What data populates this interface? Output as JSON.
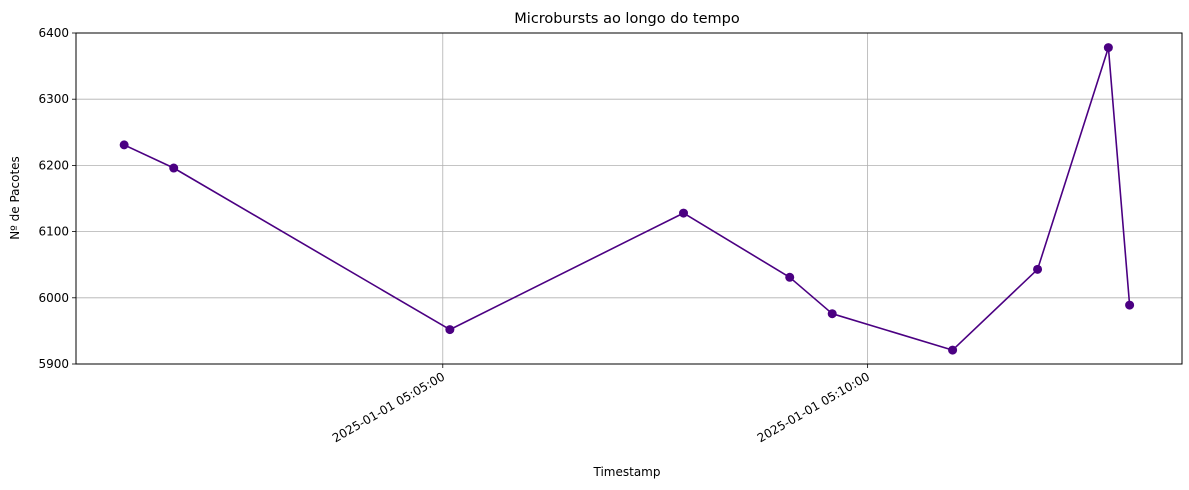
{
  "chart_data": {
    "type": "line",
    "title": "Microbursts ao longo do tempo",
    "xlabel": "Timestamp",
    "ylabel": "Nº de Pacotes",
    "grid": true,
    "legend": "none",
    "line_color": "#4b0082",
    "marker": "circle",
    "x_ticks": [
      "2025-01-01 05:05:00",
      "2025-01-01 05:10:00"
    ],
    "y_ticks": [
      5900,
      6000,
      6100,
      6200,
      6300,
      6400
    ],
    "xlim": [
      "2025-01-01 05:00:41",
      "2025-01-01 05:13:42"
    ],
    "ylim": [
      5900,
      6400
    ],
    "series": [
      {
        "x": [
          "2025-01-01 05:01:15",
          "2025-01-01 05:01:50",
          "2025-01-01 05:05:05",
          "2025-01-01 05:07:50",
          "2025-01-01 05:09:05",
          "2025-01-01 05:09:35",
          "2025-01-01 05:11:00",
          "2025-01-01 05:12:00",
          "2025-01-01 05:12:50",
          "2025-01-01 05:13:05"
        ],
        "y": [
          6231,
          6196,
          5952,
          6128,
          6031,
          5976,
          5921,
          6043,
          6378,
          5989
        ]
      }
    ]
  }
}
